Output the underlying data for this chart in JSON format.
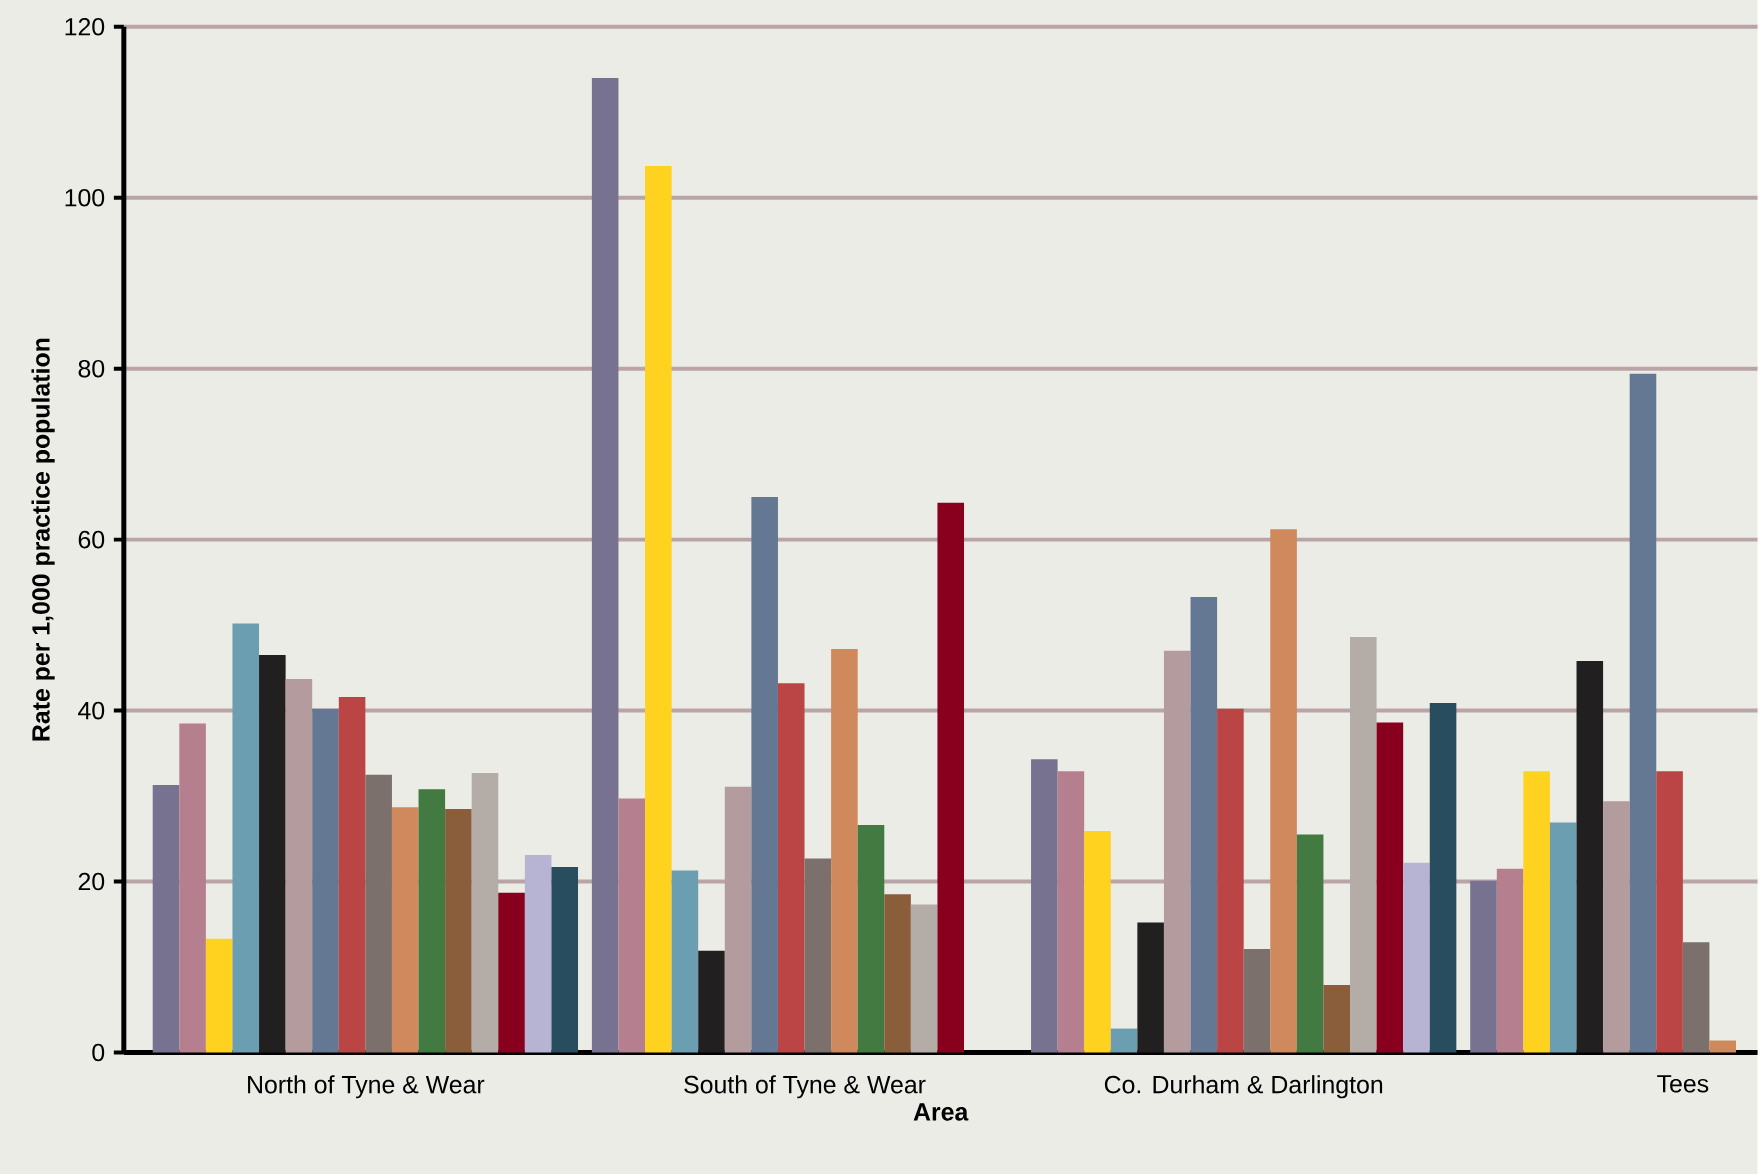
{
  "chart_data": {
    "type": "bar",
    "xlabel": "Area",
    "ylabel": "Rate per 1,000 practice population",
    "categories": [
      "North of Tyne & Wear",
      "South of Tyne & Wear",
      "Co. Durham & Darlington",
      "Tees"
    ],
    "ylim": [
      0,
      120
    ],
    "yticks": [
      0,
      20,
      40,
      60,
      80,
      100,
      120
    ],
    "grid": "y",
    "series": [
      {
        "color": "#777290",
        "values": [
          31.3,
          114.0,
          34.3,
          20.1
        ]
      },
      {
        "color": "#b67f8f",
        "values": [
          38.5,
          29.7,
          32.9,
          21.5
        ]
      },
      {
        "color": "#ffd21f",
        "values": [
          13.3,
          103.7,
          25.9,
          32.9
        ]
      },
      {
        "color": "#6b9eb1",
        "values": [
          50.2,
          21.3,
          2.8,
          26.9
        ]
      },
      {
        "color": "#221f20",
        "values": [
          46.5,
          11.9,
          15.2,
          45.8
        ]
      },
      {
        "color": "#b49c9e",
        "values": [
          43.7,
          31.1,
          47.0,
          29.4
        ]
      },
      {
        "color": "#647894",
        "values": [
          40.2,
          65.0,
          53.3,
          79.4
        ]
      },
      {
        "color": "#bb4545",
        "values": [
          41.6,
          43.2,
          40.2,
          32.9
        ]
      },
      {
        "color": "#7b706c",
        "values": [
          32.5,
          22.7,
          12.1,
          12.9
        ]
      },
      {
        "color": "#d0885d",
        "values": [
          28.7,
          47.2,
          61.2,
          1.4
        ]
      },
      {
        "color": "#437a41",
        "values": [
          30.8,
          26.6,
          25.5,
          null
        ]
      },
      {
        "color": "#8a5e3b",
        "values": [
          28.5,
          18.5,
          7.9,
          null
        ]
      },
      {
        "color": "#b4aca7",
        "values": [
          32.7,
          17.3,
          48.6,
          null
        ]
      },
      {
        "color": "#89001f",
        "values": [
          18.7,
          64.3,
          38.6,
          null
        ]
      },
      {
        "color": "#b7b4d3",
        "values": [
          23.1,
          null,
          22.2,
          null
        ]
      },
      {
        "color": "#284d5e",
        "values": [
          21.7,
          null,
          40.9,
          null
        ]
      }
    ]
  }
}
